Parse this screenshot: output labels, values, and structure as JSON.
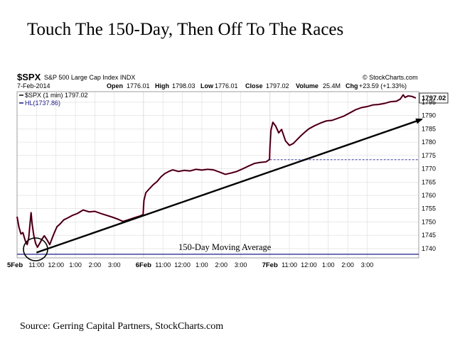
{
  "title": "Touch The 150-Day, Then Off To The Races",
  "source": "Source: Gerring Capital Partners, StockCharts.com",
  "header": {
    "symbol": "$SPX",
    "name": "S&P 500 Large Cap Index INDX",
    "watermark": "© StockCharts.com",
    "date": "7-Feb-2014",
    "open_label": "Open",
    "open_value": "1776.01",
    "high_label": "High",
    "high_value": "1798.03",
    "low_label": "Low",
    "low_value": "1776.01",
    "close_label": "Close",
    "close_value": "1797.02",
    "volume_label": "Volume",
    "volume_value": "25.4M",
    "chg_label": "Chg",
    "chg_value": "+23.59 (+1.33%)",
    "legend_price": "$SPX (1 min) 1797.02",
    "legend_hl": "HL(1737.86)",
    "last_price_box": "1797.02"
  },
  "annotations": {
    "moving_average": "150-Day Moving Average"
  },
  "colors": {
    "price_line": "#000000",
    "price_accent": "#c0144c",
    "hl_line": "#1a1a8c",
    "grid": "#dcdcdc",
    "level_dashed": "#1a1a8c"
  },
  "chart_data": {
    "type": "line",
    "ylim": [
      1736.5,
      1799
    ],
    "y_ticks": [
      "1740",
      "1745",
      "1750",
      "1755",
      "1760",
      "1765",
      "1770",
      "1775",
      "1780",
      "1785",
      "1790",
      "1795"
    ],
    "x_tick_labels": [
      "5Feb",
      "11:00",
      "12:00",
      "1:00",
      "2:00",
      "3:00",
      "6Feb",
      "11:00",
      "12:00",
      "1:00",
      "2:00",
      "3:00",
      "7Feb",
      "11:00",
      "12:00",
      "1:00",
      "2:00",
      "3:00"
    ],
    "horizontal_line": {
      "name": "HL",
      "value": 1737.86
    },
    "dashed_level": 1773.4,
    "trend_line": {
      "start": [
        1,
        1738.5
      ],
      "end": [
        20.8,
        1788.6
      ]
    },
    "x_unit": "trading hours from 5-Feb open",
    "series": [
      {
        "values": [
          [
            0.0,
            1752.0
          ],
          [
            0.1,
            1748.0
          ],
          [
            0.2,
            1745.5
          ],
          [
            0.3,
            1746.0
          ],
          [
            0.42,
            1743.0
          ],
          [
            0.52,
            1741.5
          ],
          [
            0.6,
            1744.0
          ],
          [
            0.66,
            1749.0
          ],
          [
            0.72,
            1753.5
          ],
          [
            0.78,
            1749.0
          ],
          [
            0.86,
            1745.0
          ],
          [
            0.95,
            1742.0
          ],
          [
            1.05,
            1740.5
          ],
          [
            1.15,
            1741.8
          ],
          [
            1.28,
            1743.5
          ],
          [
            1.4,
            1744.8
          ],
          [
            1.55,
            1743.2
          ],
          [
            1.68,
            1741.5
          ],
          [
            1.8,
            1743.8
          ],
          [
            1.92,
            1746.0
          ],
          [
            2.05,
            1748.2
          ],
          [
            2.2,
            1749.2
          ],
          [
            2.4,
            1750.8
          ],
          [
            2.6,
            1751.5
          ],
          [
            2.85,
            1752.5
          ],
          [
            3.1,
            1753.2
          ],
          [
            3.4,
            1754.5
          ],
          [
            3.7,
            1753.8
          ],
          [
            4.0,
            1754.0
          ],
          [
            4.3,
            1753.2
          ],
          [
            4.6,
            1752.5
          ],
          [
            4.9,
            1751.8
          ],
          [
            5.2,
            1751.0
          ],
          [
            5.45,
            1750.2
          ],
          [
            5.7,
            1750.8
          ],
          [
            6.0,
            1751.5
          ],
          [
            6.3,
            1752.2
          ],
          [
            6.48,
            1752.8
          ],
          [
            6.52,
            1758.0
          ],
          [
            6.62,
            1761.0
          ],
          [
            6.8,
            1762.5
          ],
          [
            7.0,
            1764.0
          ],
          [
            7.2,
            1765.2
          ],
          [
            7.4,
            1767.0
          ],
          [
            7.6,
            1768.2
          ],
          [
            7.8,
            1769.0
          ],
          [
            8.0,
            1769.6
          ],
          [
            8.3,
            1769.0
          ],
          [
            8.6,
            1769.4
          ],
          [
            8.9,
            1769.2
          ],
          [
            9.2,
            1769.8
          ],
          [
            9.5,
            1769.5
          ],
          [
            9.8,
            1769.8
          ],
          [
            10.1,
            1769.6
          ],
          [
            10.4,
            1768.8
          ],
          [
            10.7,
            1767.9
          ],
          [
            11.0,
            1768.4
          ],
          [
            11.3,
            1769.0
          ],
          [
            11.6,
            1770.0
          ],
          [
            11.9,
            1771.0
          ],
          [
            12.2,
            1772.0
          ],
          [
            12.5,
            1772.4
          ],
          [
            12.8,
            1772.6
          ],
          [
            12.98,
            1773.5
          ],
          [
            13.0,
            1778.0
          ],
          [
            13.05,
            1784.5
          ],
          [
            13.15,
            1787.5
          ],
          [
            13.3,
            1786.0
          ],
          [
            13.45,
            1783.5
          ],
          [
            13.6,
            1784.8
          ],
          [
            13.8,
            1780.5
          ],
          [
            14.0,
            1778.8
          ],
          [
            14.2,
            1779.5
          ],
          [
            14.4,
            1781.0
          ],
          [
            14.6,
            1782.5
          ],
          [
            14.8,
            1783.8
          ],
          [
            15.0,
            1785.0
          ],
          [
            15.3,
            1786.2
          ],
          [
            15.6,
            1787.2
          ],
          [
            15.9,
            1788.0
          ],
          [
            16.2,
            1788.2
          ],
          [
            16.5,
            1789.0
          ],
          [
            16.8,
            1789.8
          ],
          [
            17.1,
            1791.0
          ],
          [
            17.4,
            1792.2
          ],
          [
            17.7,
            1793.0
          ],
          [
            18.0,
            1793.4
          ],
          [
            18.3,
            1794.0
          ],
          [
            18.6,
            1794.2
          ],
          [
            18.9,
            1794.6
          ],
          [
            19.2,
            1795.2
          ],
          [
            19.5,
            1795.4
          ],
          [
            19.7,
            1796.2
          ],
          [
            19.85,
            1797.8
          ],
          [
            19.95,
            1796.8
          ],
          [
            20.1,
            1797.4
          ],
          [
            20.3,
            1797.2
          ],
          [
            20.5,
            1796.6
          ]
        ]
      }
    ]
  }
}
